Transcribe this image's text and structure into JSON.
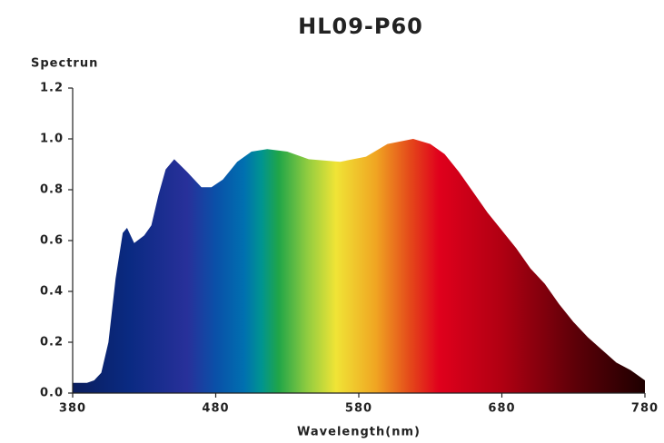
{
  "chart_data": {
    "type": "area",
    "title": "HL09-P60",
    "y_label": "Spectrun",
    "x_label": "Wavelength(nm)",
    "x": [
      380,
      390,
      395,
      400,
      405,
      410,
      415,
      418,
      423,
      430,
      435,
      440,
      445,
      451,
      460,
      470,
      477,
      485,
      495,
      505,
      516,
      530,
      545,
      567,
      585,
      600,
      618,
      630,
      640,
      650,
      660,
      670,
      680,
      690,
      700,
      710,
      720,
      730,
      740,
      750,
      760,
      770,
      780
    ],
    "values": [
      0.04,
      0.04,
      0.05,
      0.08,
      0.2,
      0.45,
      0.63,
      0.65,
      0.59,
      0.62,
      0.66,
      0.78,
      0.88,
      0.92,
      0.87,
      0.81,
      0.81,
      0.84,
      0.91,
      0.95,
      0.96,
      0.95,
      0.92,
      0.91,
      0.93,
      0.98,
      1.0,
      0.98,
      0.94,
      0.87,
      0.79,
      0.71,
      0.64,
      0.57,
      0.49,
      0.43,
      0.35,
      0.28,
      0.22,
      0.17,
      0.12,
      0.09,
      0.05
    ],
    "xlim": [
      380,
      780
    ],
    "xticks": [
      380,
      480,
      580,
      680,
      780
    ],
    "ylim": [
      0,
      1.2
    ],
    "yticks": [
      {
        "value": 0,
        "label": "0.0"
      },
      {
        "value": 0.2,
        "label": "0.2"
      },
      {
        "value": 0.4,
        "label": "0.4"
      },
      {
        "value": 0.6,
        "label": "0.6"
      },
      {
        "value": 0.8,
        "label": "0.8"
      },
      {
        "value": 1.0,
        "label": "1.0"
      },
      {
        "value": 1.2,
        "label": "1.2"
      }
    ]
  }
}
